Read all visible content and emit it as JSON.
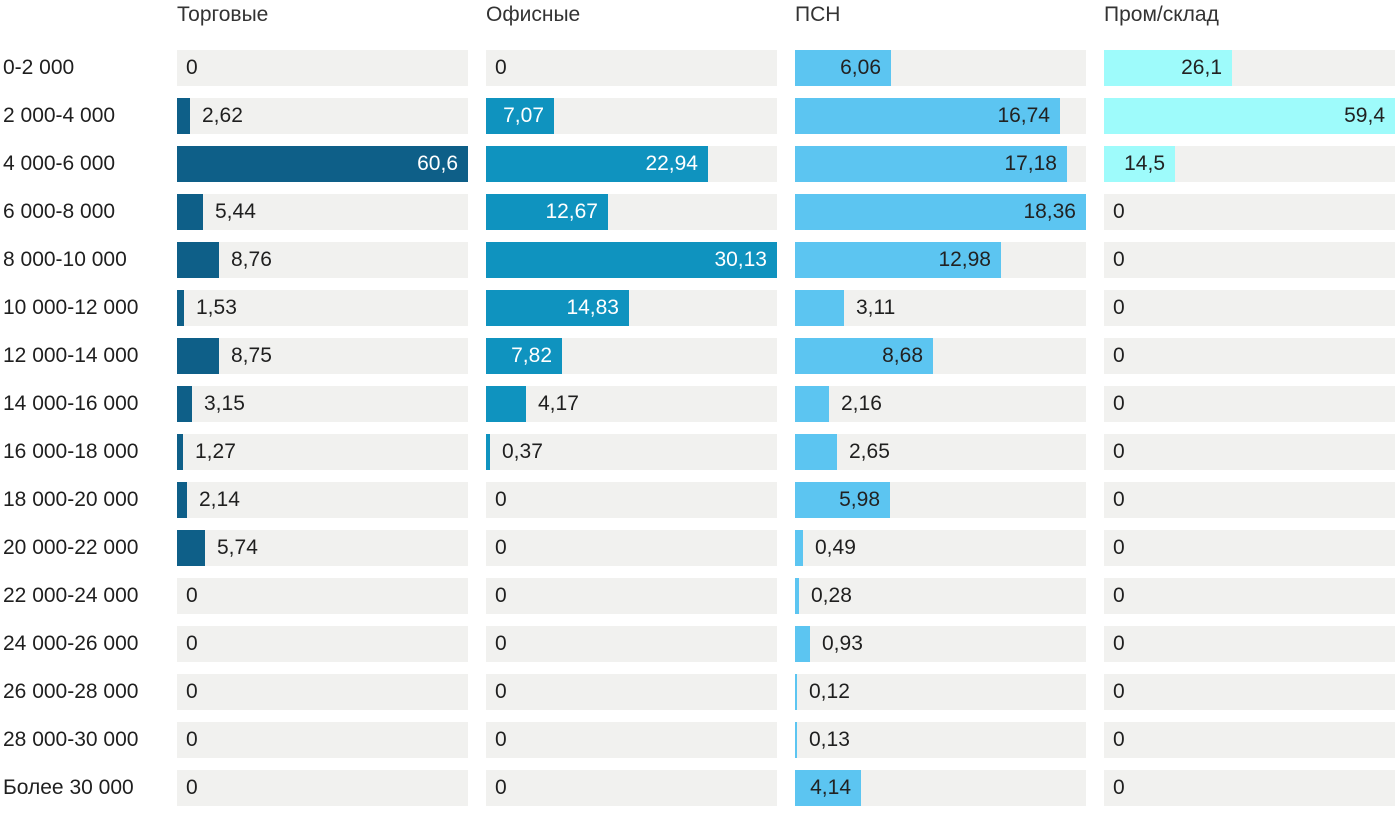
{
  "chart_data": {
    "type": "bar",
    "orientation": "horizontal",
    "title": "",
    "grid": false,
    "legend_position": "column-headers",
    "value_format": "decimal-comma",
    "scaling": "each column scaled to its own max value",
    "track_color": "#f1f1ef",
    "text_color": "#1f1f1f",
    "header_color": "#333333",
    "categories": [
      "0-2 000",
      "2 000-4 000",
      "4 000-6 000",
      "6 000-8 000",
      "8 000-10 000",
      "10 000-12 000",
      "12 000-14 000",
      "14 000-16 000",
      "16 000-18 000",
      "18 000-20 000",
      "20 000-22 000",
      "22 000-24 000",
      "24 000-26 000",
      "26 000-28 000",
      "28 000-30 000",
      "Более 30 000"
    ],
    "series": [
      {
        "name": "Торговые",
        "color": "#0e5f88",
        "inside_label_color": "#ffffff",
        "max": 60.6,
        "values": [
          0,
          2.62,
          60.6,
          5.44,
          8.76,
          1.53,
          8.75,
          3.15,
          1.27,
          2.14,
          5.74,
          0,
          0,
          0,
          0,
          0
        ],
        "labels": [
          "0",
          "2,62",
          "60,6",
          "5,44",
          "8,76",
          "1,53",
          "8,75",
          "3,15",
          "1,27",
          "2,14",
          "5,74",
          "0",
          "0",
          "0",
          "0",
          "0"
        ]
      },
      {
        "name": "Офисные",
        "color": "#0f93bf",
        "inside_label_color": "#ffffff",
        "max": 30.13,
        "values": [
          0,
          7.07,
          22.94,
          12.67,
          30.13,
          14.83,
          7.82,
          4.17,
          0.37,
          0,
          0,
          0,
          0,
          0,
          0,
          0
        ],
        "labels": [
          "0",
          "7,07",
          "22,94",
          "12,67",
          "30,13",
          "14,83",
          "7,82",
          "4,17",
          "0,37",
          "0",
          "0",
          "0",
          "0",
          "0",
          "0",
          "0"
        ]
      },
      {
        "name": "ПСН",
        "color": "#5cc5f1",
        "inside_label_color": "#222222",
        "max": 18.36,
        "values": [
          6.06,
          16.74,
          17.18,
          18.36,
          12.98,
          3.11,
          8.68,
          2.16,
          2.65,
          5.98,
          0.49,
          0.28,
          0.93,
          0.12,
          0.13,
          4.14
        ],
        "labels": [
          "6,06",
          "16,74",
          "17,18",
          "18,36",
          "12,98",
          "3,11",
          "8,68",
          "2,16",
          "2,65",
          "5,98",
          "0,49",
          "0,28",
          "0,93",
          "0,12",
          "0,13",
          "4,14"
        ]
      },
      {
        "name": "Пром/склад",
        "color": "#9efbfb",
        "inside_label_color": "#222222",
        "max": 59.4,
        "values": [
          26.1,
          59.4,
          14.5,
          0,
          0,
          0,
          0,
          0,
          0,
          0,
          0,
          0,
          0,
          0,
          0,
          0
        ],
        "labels": [
          "26,1",
          "59,4",
          "14,5",
          "0",
          "0",
          "0",
          "0",
          "0",
          "0",
          "0",
          "0",
          "0",
          "0",
          "0",
          "0",
          "0"
        ]
      }
    ]
  }
}
